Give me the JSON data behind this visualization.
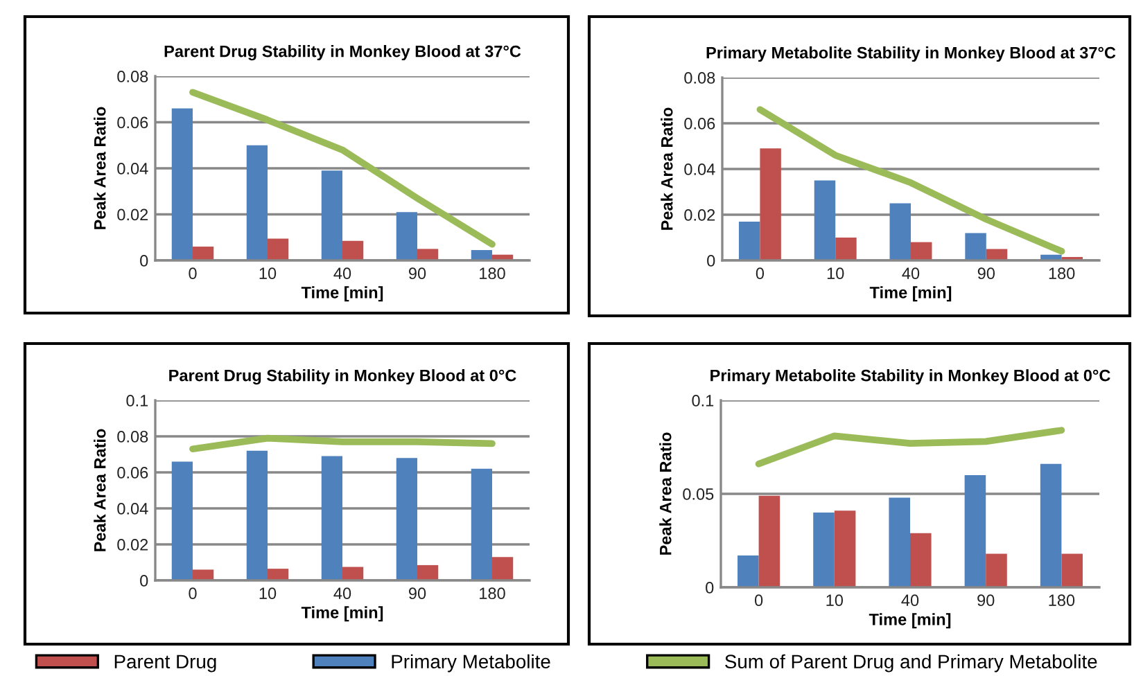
{
  "chart_data": [
    {
      "type": "bar",
      "title": "Parent Drug Stability in Monkey Blood at 37°C",
      "xlabel": "Time [min]",
      "ylabel": "Peak Area Ratio",
      "categories": [
        "0",
        "10",
        "40",
        "90",
        "180"
      ],
      "ylim": [
        0,
        0.08
      ],
      "yticks": [
        0,
        0.02,
        0.04,
        0.06,
        0.08
      ],
      "grid": "y",
      "legend": "bottom",
      "series": [
        {
          "name": "Primary Metabolite",
          "color": "#4f81bd",
          "values": [
            0.066,
            0.05,
            0.039,
            0.021,
            0.0045
          ]
        },
        {
          "name": "Parent Drug",
          "color": "#c0504d",
          "values": [
            0.006,
            0.0095,
            0.0085,
            0.005,
            0.0025
          ]
        },
        {
          "name": "Sum of Parent Drug and Primary Metabolite",
          "type": "line",
          "color": "#9bbb59",
          "values": [
            0.073,
            0.061,
            0.048,
            0.027,
            0.007
          ]
        }
      ]
    },
    {
      "type": "bar",
      "title": "Primary Metabolite Stability in Monkey Blood at 37°C",
      "xlabel": "Time [min]",
      "ylabel": "Peak Area Ratio",
      "categories": [
        "0",
        "10",
        "40",
        "90",
        "180"
      ],
      "ylim": [
        0,
        0.08
      ],
      "yticks": [
        0,
        0.02,
        0.04,
        0.06,
        0.08
      ],
      "grid": "y",
      "series": [
        {
          "color": "#4f81bd",
          "values": [
            0.017,
            0.035,
            0.025,
            0.012,
            0.0025
          ]
        },
        {
          "color": "#c0504d",
          "values": [
            0.049,
            0.01,
            0.008,
            0.005,
            0.0015
          ]
        },
        {
          "type": "line",
          "color": "#9bbb59",
          "values": [
            0.066,
            0.046,
            0.034,
            0.018,
            0.004
          ]
        }
      ]
    },
    {
      "type": "bar",
      "title": "Parent Drug Stability in Monkey Blood at 0°C",
      "xlabel": "Time [min]",
      "ylabel": "Peak Area Ratio",
      "categories": [
        "0",
        "10",
        "40",
        "90",
        "180"
      ],
      "ylim": [
        0,
        0.1
      ],
      "yticks": [
        0,
        0.02,
        0.04,
        0.06,
        0.08,
        0.1
      ],
      "grid": "y",
      "series": [
        {
          "color": "#4f81bd",
          "values": [
            0.066,
            0.072,
            0.069,
            0.068,
            0.062
          ]
        },
        {
          "color": "#c0504d",
          "values": [
            0.006,
            0.0065,
            0.0075,
            0.0085,
            0.013
          ]
        },
        {
          "type": "line",
          "color": "#9bbb59",
          "values": [
            0.073,
            0.079,
            0.077,
            0.077,
            0.076
          ]
        }
      ]
    },
    {
      "type": "bar",
      "title": "Primary Metabolite Stability in Monkey Blood at 0°C",
      "xlabel": "Time [min]",
      "ylabel": "Peak Area Ratio",
      "categories": [
        "0",
        "10",
        "40",
        "90",
        "180"
      ],
      "ylim": [
        0,
        0.1
      ],
      "yticks": [
        0,
        0.05,
        0.1
      ],
      "grid": "y",
      "series": [
        {
          "color": "#4f81bd",
          "values": [
            0.017,
            0.04,
            0.048,
            0.06,
            0.066
          ]
        },
        {
          "color": "#c0504d",
          "values": [
            0.049,
            0.041,
            0.029,
            0.018,
            0.018
          ]
        },
        {
          "type": "line",
          "color": "#9bbb59",
          "values": [
            0.066,
            0.081,
            0.077,
            0.078,
            0.084
          ]
        }
      ]
    }
  ]
}
